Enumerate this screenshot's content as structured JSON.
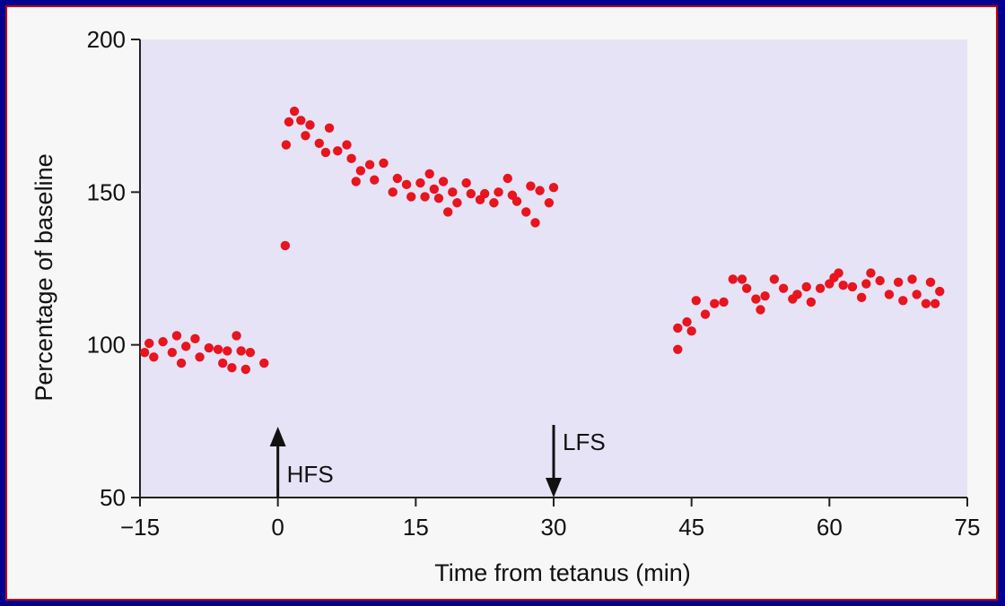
{
  "chart_data": {
    "type": "scatter",
    "title": "",
    "xlabel": "Time from tetanus (min)",
    "ylabel": "Percentage of baseline",
    "xlim": [
      -15,
      75
    ],
    "ylim": [
      50,
      200
    ],
    "x_ticks": [
      "−15",
      "0",
      "15",
      "30",
      "45",
      "60",
      "75"
    ],
    "x_tick_values": [
      -15,
      0,
      15,
      30,
      45,
      60,
      75
    ],
    "y_ticks": [
      "50",
      "100",
      "150",
      "200"
    ],
    "y_tick_values": [
      50,
      100,
      150,
      200
    ],
    "grid": false,
    "plot_background": "#e7e3f6",
    "point_color": "#e8141e",
    "annotations": [
      {
        "label": "HFS",
        "x": 0,
        "direction": "up"
      },
      {
        "label": "LFS",
        "x": 30,
        "direction": "down"
      }
    ],
    "series": [
      {
        "points": [
          [
            -14.5,
            97.5
          ],
          [
            -14,
            100.5
          ],
          [
            -13.5,
            96
          ],
          [
            -12.5,
            101
          ],
          [
            -11.5,
            97.5
          ],
          [
            -11,
            103
          ],
          [
            -10.5,
            94
          ],
          [
            -10,
            99.5
          ],
          [
            -9,
            102
          ],
          [
            -8.5,
            96
          ],
          [
            -7.5,
            99
          ],
          [
            -6.5,
            98.5
          ],
          [
            -6,
            94
          ],
          [
            -5.5,
            98
          ],
          [
            -5,
            92.5
          ],
          [
            -4.5,
            103
          ],
          [
            -4,
            98
          ],
          [
            -3.5,
            92
          ],
          [
            -3,
            97.5
          ],
          [
            -1.5,
            94
          ],
          [
            0.8,
            132.5
          ],
          [
            0.9,
            165.5
          ],
          [
            1.2,
            173
          ],
          [
            1.8,
            176.5
          ],
          [
            2.5,
            173.5
          ],
          [
            3,
            168.5
          ],
          [
            3.5,
            172
          ],
          [
            4.5,
            166
          ],
          [
            5.2,
            163
          ],
          [
            5.6,
            171
          ],
          [
            6.5,
            163.5
          ],
          [
            7.5,
            165.5
          ],
          [
            8,
            161
          ],
          [
            8.5,
            153.5
          ],
          [
            9,
            157
          ],
          [
            10,
            159
          ],
          [
            10.5,
            154
          ],
          [
            11.5,
            159.5
          ],
          [
            12.5,
            150
          ],
          [
            13,
            154.5
          ],
          [
            14,
            152.5
          ],
          [
            14.5,
            148.5
          ],
          [
            15.5,
            153
          ],
          [
            16,
            148.5
          ],
          [
            16.5,
            156
          ],
          [
            17,
            151
          ],
          [
            17.5,
            148
          ],
          [
            18,
            153.5
          ],
          [
            18.5,
            143.5
          ],
          [
            19,
            150
          ],
          [
            19.5,
            146.5
          ],
          [
            20.5,
            153
          ],
          [
            21,
            149.5
          ],
          [
            22,
            147.5
          ],
          [
            22.5,
            149.5
          ],
          [
            23.5,
            146.5
          ],
          [
            24,
            150
          ],
          [
            25,
            154.5
          ],
          [
            25.5,
            149
          ],
          [
            26,
            147
          ],
          [
            27,
            143.5
          ],
          [
            27.5,
            152
          ],
          [
            28,
            140
          ],
          [
            28.5,
            150.5
          ],
          [
            29.5,
            146.5
          ],
          [
            30,
            151.5
          ],
          [
            43.5,
            98.5
          ],
          [
            43.5,
            105.5
          ],
          [
            44.5,
            107.5
          ],
          [
            45,
            104.5
          ],
          [
            45.5,
            114.5
          ],
          [
            46.5,
            110
          ],
          [
            47.5,
            113.5
          ],
          [
            48.5,
            114
          ],
          [
            49.5,
            121.5
          ],
          [
            50.5,
            121.5
          ],
          [
            51,
            118.5
          ],
          [
            52,
            115
          ],
          [
            52.5,
            111.5
          ],
          [
            53,
            116
          ],
          [
            54,
            121.5
          ],
          [
            55,
            118.5
          ],
          [
            56,
            115
          ],
          [
            56.5,
            116.5
          ],
          [
            57.5,
            119
          ],
          [
            58,
            114
          ],
          [
            59,
            118.5
          ],
          [
            60,
            120
          ],
          [
            60.5,
            122
          ],
          [
            61,
            123.5
          ],
          [
            61.5,
            119.5
          ],
          [
            62.5,
            119
          ],
          [
            63.5,
            115.5
          ],
          [
            64,
            120
          ],
          [
            64.5,
            123.5
          ],
          [
            65.5,
            121
          ],
          [
            66.5,
            116.5
          ],
          [
            67.5,
            120.5
          ],
          [
            68,
            114.5
          ],
          [
            69,
            121.5
          ],
          [
            69.5,
            116.5
          ],
          [
            70.5,
            113.5
          ],
          [
            71,
            120.5
          ],
          [
            71.5,
            113.5
          ],
          [
            72,
            117.5
          ]
        ]
      }
    ]
  }
}
